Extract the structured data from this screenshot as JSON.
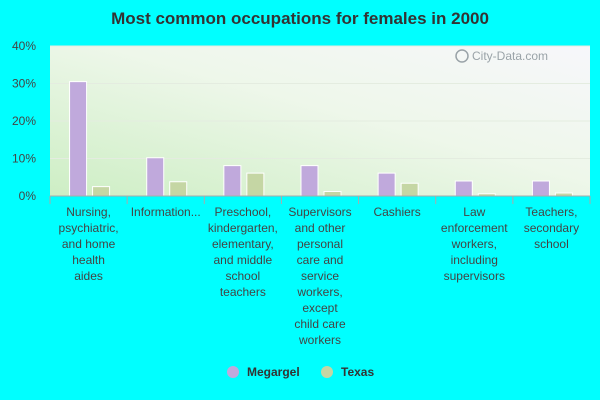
{
  "chart_data": {
    "type": "bar",
    "title": "Most common occupations for females in 2000",
    "categories": [
      [
        "Nursing,",
        "psychiatric,",
        "and home",
        "health",
        "aides"
      ],
      [
        "Information..."
      ],
      [
        "Preschool,",
        "kindergarten,",
        "elementary,",
        "and middle",
        "school",
        "teachers"
      ],
      [
        "Supervisors",
        "and other",
        "personal",
        "care and",
        "service",
        "workers,",
        "except",
        "child care",
        "workers"
      ],
      [
        "Cashiers"
      ],
      [
        "Law",
        "enforcement",
        "workers,",
        "including",
        "supervisors"
      ],
      [
        "Teachers,",
        "secondary",
        "school"
      ]
    ],
    "series": [
      {
        "name": "Megargel",
        "color": "#c0a9dc",
        "values": [
          30.5,
          10.2,
          8.1,
          8.1,
          6.1,
          4.0,
          4.0
        ]
      },
      {
        "name": "Texas",
        "color": "#c5d6a4",
        "values": [
          2.5,
          3.8,
          6.1,
          1.2,
          3.4,
          0.6,
          0.8
        ]
      }
    ],
    "yticks": [
      "0%",
      "10%",
      "20%",
      "30%",
      "40%"
    ],
    "ylim": [
      0,
      40
    ],
    "grid": true,
    "legend_position": "bottom-center",
    "watermark": "City-Data.com"
  }
}
